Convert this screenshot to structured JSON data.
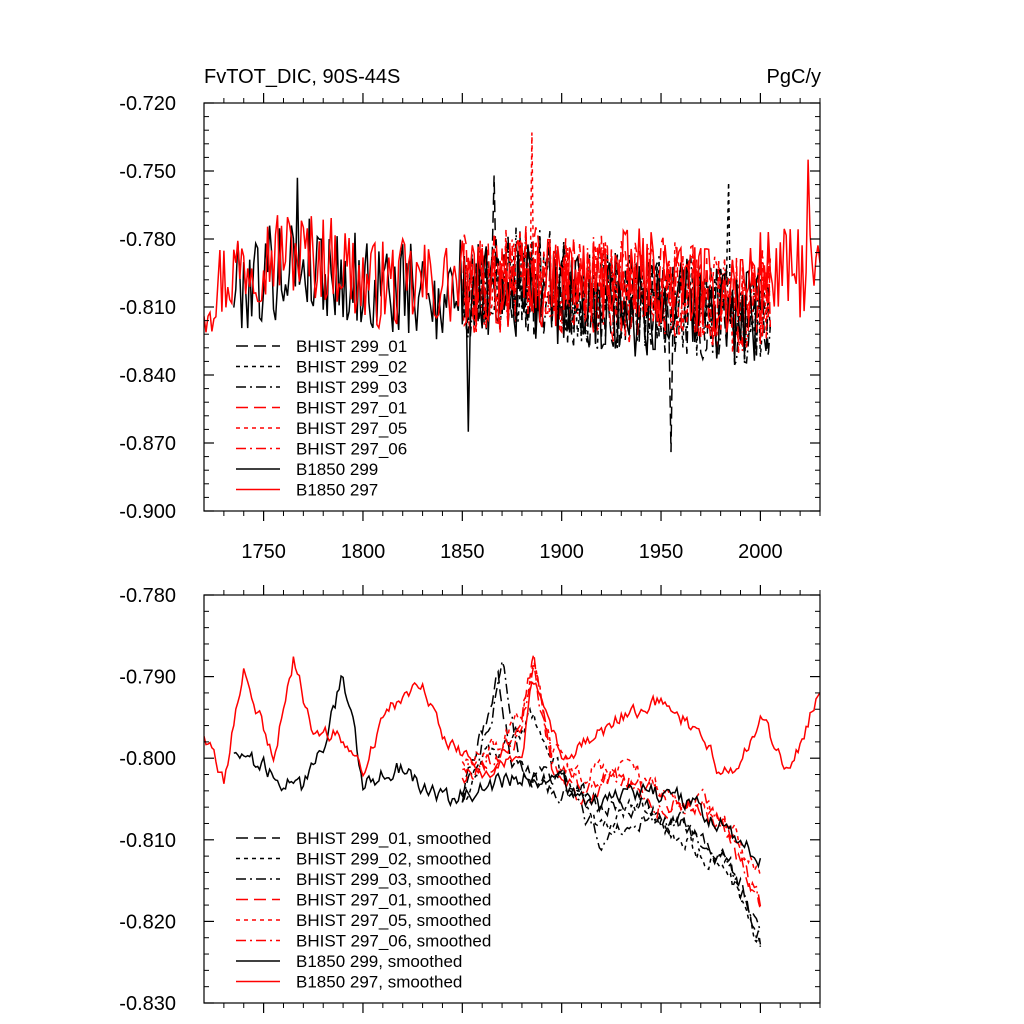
{
  "chart_data": [
    {
      "type": "line",
      "title_left": "FvTOT_DIC, 90S-44S",
      "title_right": "PgC/y",
      "xlim": [
        1720,
        2030
      ],
      "ylim": [
        -0.9,
        -0.72
      ],
      "x_ticks": [
        1750,
        1800,
        1850,
        1900,
        1950,
        2000
      ],
      "y_ticks": [
        -0.72,
        -0.75,
        -0.78,
        -0.81,
        -0.84,
        -0.87,
        -0.9
      ],
      "y_tick_labels": [
        "-0.720",
        "-0.750",
        "-0.780",
        "-0.810",
        "-0.840",
        "-0.870",
        "-0.900"
      ],
      "legend_position": "bottom-left",
      "series": [
        {
          "name": "BHIST 299_01",
          "color": "#000000",
          "dash": "long-dash",
          "x_range": [
            1850,
            2005
          ],
          "x_knots": [
            1850,
            1865,
            1880,
            1900,
            1920,
            1940,
            1955,
            1975,
            2000,
            2005
          ],
          "y_knots": [
            -0.805,
            -0.795,
            -0.8,
            -0.805,
            -0.81,
            -0.805,
            -0.815,
            -0.81,
            -0.815,
            -0.81
          ],
          "noise": 0.022,
          "seed": 11,
          "events": [
            [
              1866,
              -0.752
            ],
            [
              1955,
              -0.874
            ]
          ]
        },
        {
          "name": "BHIST 299_02",
          "color": "#000000",
          "dash": "short-dash",
          "x_range": [
            1850,
            2005
          ],
          "x_knots": [
            1850,
            1870,
            1890,
            1910,
            1930,
            1950,
            1970,
            1990,
            2005
          ],
          "y_knots": [
            -0.805,
            -0.8,
            -0.795,
            -0.805,
            -0.81,
            -0.805,
            -0.81,
            -0.815,
            -0.81
          ],
          "noise": 0.022,
          "seed": 23,
          "events": [
            [
              1984,
              -0.755
            ]
          ]
        },
        {
          "name": "BHIST 299_03",
          "color": "#000000",
          "dash": "dash-dot",
          "x_range": [
            1850,
            2005
          ],
          "x_knots": [
            1850,
            1870,
            1890,
            1910,
            1930,
            1950,
            1970,
            1990,
            2005
          ],
          "y_knots": [
            -0.805,
            -0.795,
            -0.8,
            -0.805,
            -0.805,
            -0.81,
            -0.81,
            -0.815,
            -0.81
          ],
          "noise": 0.022,
          "seed": 37,
          "events": []
        },
        {
          "name": "BHIST 297_01",
          "color": "#ff0000",
          "dash": "long-dash",
          "x_range": [
            1850,
            2005
          ],
          "x_knots": [
            1850,
            1870,
            1885,
            1900,
            1930,
            1950,
            1970,
            1990,
            2005
          ],
          "y_knots": [
            -0.8,
            -0.8,
            -0.79,
            -0.8,
            -0.805,
            -0.8,
            -0.805,
            -0.81,
            -0.805
          ],
          "noise": 0.022,
          "seed": 41,
          "events": []
        },
        {
          "name": "BHIST 297_05",
          "color": "#ff0000",
          "dash": "short-dash",
          "x_range": [
            1850,
            2005
          ],
          "x_knots": [
            1850,
            1870,
            1885,
            1900,
            1930,
            1950,
            1970,
            1990,
            2005
          ],
          "y_knots": [
            -0.8,
            -0.795,
            -0.79,
            -0.8,
            -0.805,
            -0.8,
            -0.805,
            -0.81,
            -0.805
          ],
          "noise": 0.022,
          "seed": 53,
          "events": [
            [
              1885,
              -0.733
            ]
          ]
        },
        {
          "name": "BHIST 297_06",
          "color": "#ff0000",
          "dash": "dash-dot",
          "x_range": [
            1850,
            2005
          ],
          "x_knots": [
            1850,
            1870,
            1885,
            1900,
            1930,
            1950,
            1970,
            1990,
            2005
          ],
          "y_knots": [
            -0.8,
            -0.8,
            -0.79,
            -0.8,
            -0.8,
            -0.805,
            -0.805,
            -0.81,
            -0.805
          ],
          "noise": 0.022,
          "seed": 67,
          "events": []
        },
        {
          "name": "B1850 299",
          "color": "#000000",
          "dash": "solid",
          "x_range": [
            1735,
            2000
          ],
          "x_knots": [
            1735,
            1770,
            1800,
            1830,
            1860,
            1900,
            1930,
            1960,
            2000
          ],
          "y_knots": [
            -0.8,
            -0.79,
            -0.8,
            -0.805,
            -0.8,
            -0.805,
            -0.81,
            -0.81,
            -0.815
          ],
          "noise": 0.022,
          "seed": 79,
          "events": [
            [
              1767,
              -0.753
            ],
            [
              1853,
              -0.865
            ]
          ]
        },
        {
          "name": "B1850 297",
          "color": "#ff0000",
          "dash": "solid",
          "x_range": [
            1720,
            2030
          ],
          "x_knots": [
            1720,
            1740,
            1760,
            1790,
            1800,
            1830,
            1860,
            1900,
            1940,
            1980,
            2000,
            2030
          ],
          "y_knots": [
            -0.805,
            -0.79,
            -0.785,
            -0.79,
            -0.8,
            -0.8,
            -0.8,
            -0.8,
            -0.795,
            -0.805,
            -0.795,
            -0.795
          ],
          "noise": 0.02,
          "seed": 97,
          "events": [
            [
              2024,
              -0.745
            ]
          ]
        }
      ]
    },
    {
      "type": "line",
      "xlim": [
        1720,
        2030
      ],
      "ylim": [
        -0.83,
        -0.78
      ],
      "x_ticks": [
        1750,
        1800,
        1850,
        1900,
        1950,
        2000
      ],
      "y_ticks": [
        -0.78,
        -0.79,
        -0.8,
        -0.81,
        -0.82,
        -0.83
      ],
      "y_tick_labels": [
        "-0.780",
        "-0.790",
        "-0.800",
        "-0.810",
        "-0.820",
        "-0.830"
      ],
      "legend_position": "bottom-left",
      "series": [
        {
          "name": "BHIST 299_01, smoothed",
          "color": "#000000",
          "dash": "long-dash",
          "x_range": [
            1850,
            2000
          ],
          "x_knots": [
            1850,
            1860,
            1868,
            1875,
            1890,
            1900,
            1920,
            1940,
            1960,
            1980,
            1990,
            2000
          ],
          "y_knots": [
            -0.804,
            -0.797,
            -0.79,
            -0.8,
            -0.802,
            -0.802,
            -0.806,
            -0.806,
            -0.808,
            -0.812,
            -0.815,
            -0.822
          ],
          "noise": 0.0022,
          "seed": 111,
          "events": []
        },
        {
          "name": "BHIST 299_02, smoothed",
          "color": "#000000",
          "dash": "short-dash",
          "x_range": [
            1850,
            2000
          ],
          "x_knots": [
            1850,
            1860,
            1870,
            1885,
            1900,
            1920,
            1940,
            1960,
            1980,
            1990,
            2000
          ],
          "y_knots": [
            -0.805,
            -0.8,
            -0.799,
            -0.795,
            -0.802,
            -0.808,
            -0.806,
            -0.81,
            -0.813,
            -0.817,
            -0.823
          ],
          "noise": 0.0022,
          "seed": 123,
          "events": []
        },
        {
          "name": "BHIST 299_03, smoothed",
          "color": "#000000",
          "dash": "dash-dot",
          "x_range": [
            1850,
            2000
          ],
          "x_knots": [
            1850,
            1865,
            1870,
            1880,
            1900,
            1920,
            1940,
            1960,
            1980,
            2000
          ],
          "y_knots": [
            -0.805,
            -0.795,
            -0.787,
            -0.802,
            -0.804,
            -0.81,
            -0.808,
            -0.808,
            -0.812,
            -0.82
          ],
          "noise": 0.0022,
          "seed": 137,
          "events": []
        },
        {
          "name": "BHIST 297_01, smoothed",
          "color": "#ff0000",
          "dash": "long-dash",
          "x_range": [
            1850,
            2000
          ],
          "x_knots": [
            1850,
            1870,
            1878,
            1886,
            1895,
            1910,
            1930,
            1950,
            1970,
            1985,
            2000
          ],
          "y_knots": [
            -0.802,
            -0.8,
            -0.797,
            -0.787,
            -0.8,
            -0.805,
            -0.802,
            -0.805,
            -0.806,
            -0.81,
            -0.818
          ],
          "noise": 0.0022,
          "seed": 141,
          "events": []
        },
        {
          "name": "BHIST 297_05, smoothed",
          "color": "#ff0000",
          "dash": "short-dash",
          "x_range": [
            1850,
            2000
          ],
          "x_knots": [
            1850,
            1870,
            1880,
            1886,
            1895,
            1910,
            1930,
            1950,
            1970,
            1985,
            2000
          ],
          "y_knots": [
            -0.8,
            -0.798,
            -0.795,
            -0.789,
            -0.799,
            -0.802,
            -0.8,
            -0.804,
            -0.806,
            -0.808,
            -0.815
          ],
          "noise": 0.0022,
          "seed": 153,
          "events": []
        },
        {
          "name": "BHIST 297_06, smoothed",
          "color": "#ff0000",
          "dash": "dash-dot",
          "x_range": [
            1850,
            2000
          ],
          "x_knots": [
            1850,
            1870,
            1880,
            1886,
            1895,
            1910,
            1930,
            1950,
            1970,
            1985,
            2000
          ],
          "y_knots": [
            -0.801,
            -0.8,
            -0.796,
            -0.789,
            -0.8,
            -0.803,
            -0.802,
            -0.806,
            -0.805,
            -0.809,
            -0.818
          ],
          "noise": 0.0022,
          "seed": 167,
          "events": []
        },
        {
          "name": "B1850 299, smoothed",
          "color": "#000000",
          "dash": "solid",
          "x_range": [
            1735,
            2000
          ],
          "x_knots": [
            1735,
            1750,
            1770,
            1780,
            1790,
            1800,
            1820,
            1840,
            1860,
            1880,
            1900,
            1920,
            1940,
            1960,
            1980,
            2000
          ],
          "y_knots": [
            -0.799,
            -0.801,
            -0.804,
            -0.798,
            -0.79,
            -0.803,
            -0.801,
            -0.805,
            -0.804,
            -0.802,
            -0.803,
            -0.806,
            -0.804,
            -0.805,
            -0.808,
            -0.812
          ],
          "noise": 0.0022,
          "seed": 179,
          "events": []
        },
        {
          "name": "B1850 297, smoothed",
          "color": "#ff0000",
          "dash": "solid",
          "x_range": [
            1720,
            2030
          ],
          "x_knots": [
            1720,
            1730,
            1740,
            1755,
            1765,
            1775,
            1785,
            1800,
            1810,
            1830,
            1840,
            1860,
            1880,
            1885,
            1900,
            1920,
            1930,
            1950,
            1970,
            1980,
            1990,
            2000,
            2015,
            2030
          ],
          "y_knots": [
            -0.797,
            -0.803,
            -0.789,
            -0.8,
            -0.788,
            -0.797,
            -0.797,
            -0.801,
            -0.795,
            -0.79,
            -0.797,
            -0.802,
            -0.8,
            -0.79,
            -0.8,
            -0.797,
            -0.795,
            -0.793,
            -0.797,
            -0.802,
            -0.801,
            -0.795,
            -0.802,
            -0.791
          ],
          "noise": 0.0018,
          "seed": 197,
          "events": []
        }
      ]
    }
  ]
}
